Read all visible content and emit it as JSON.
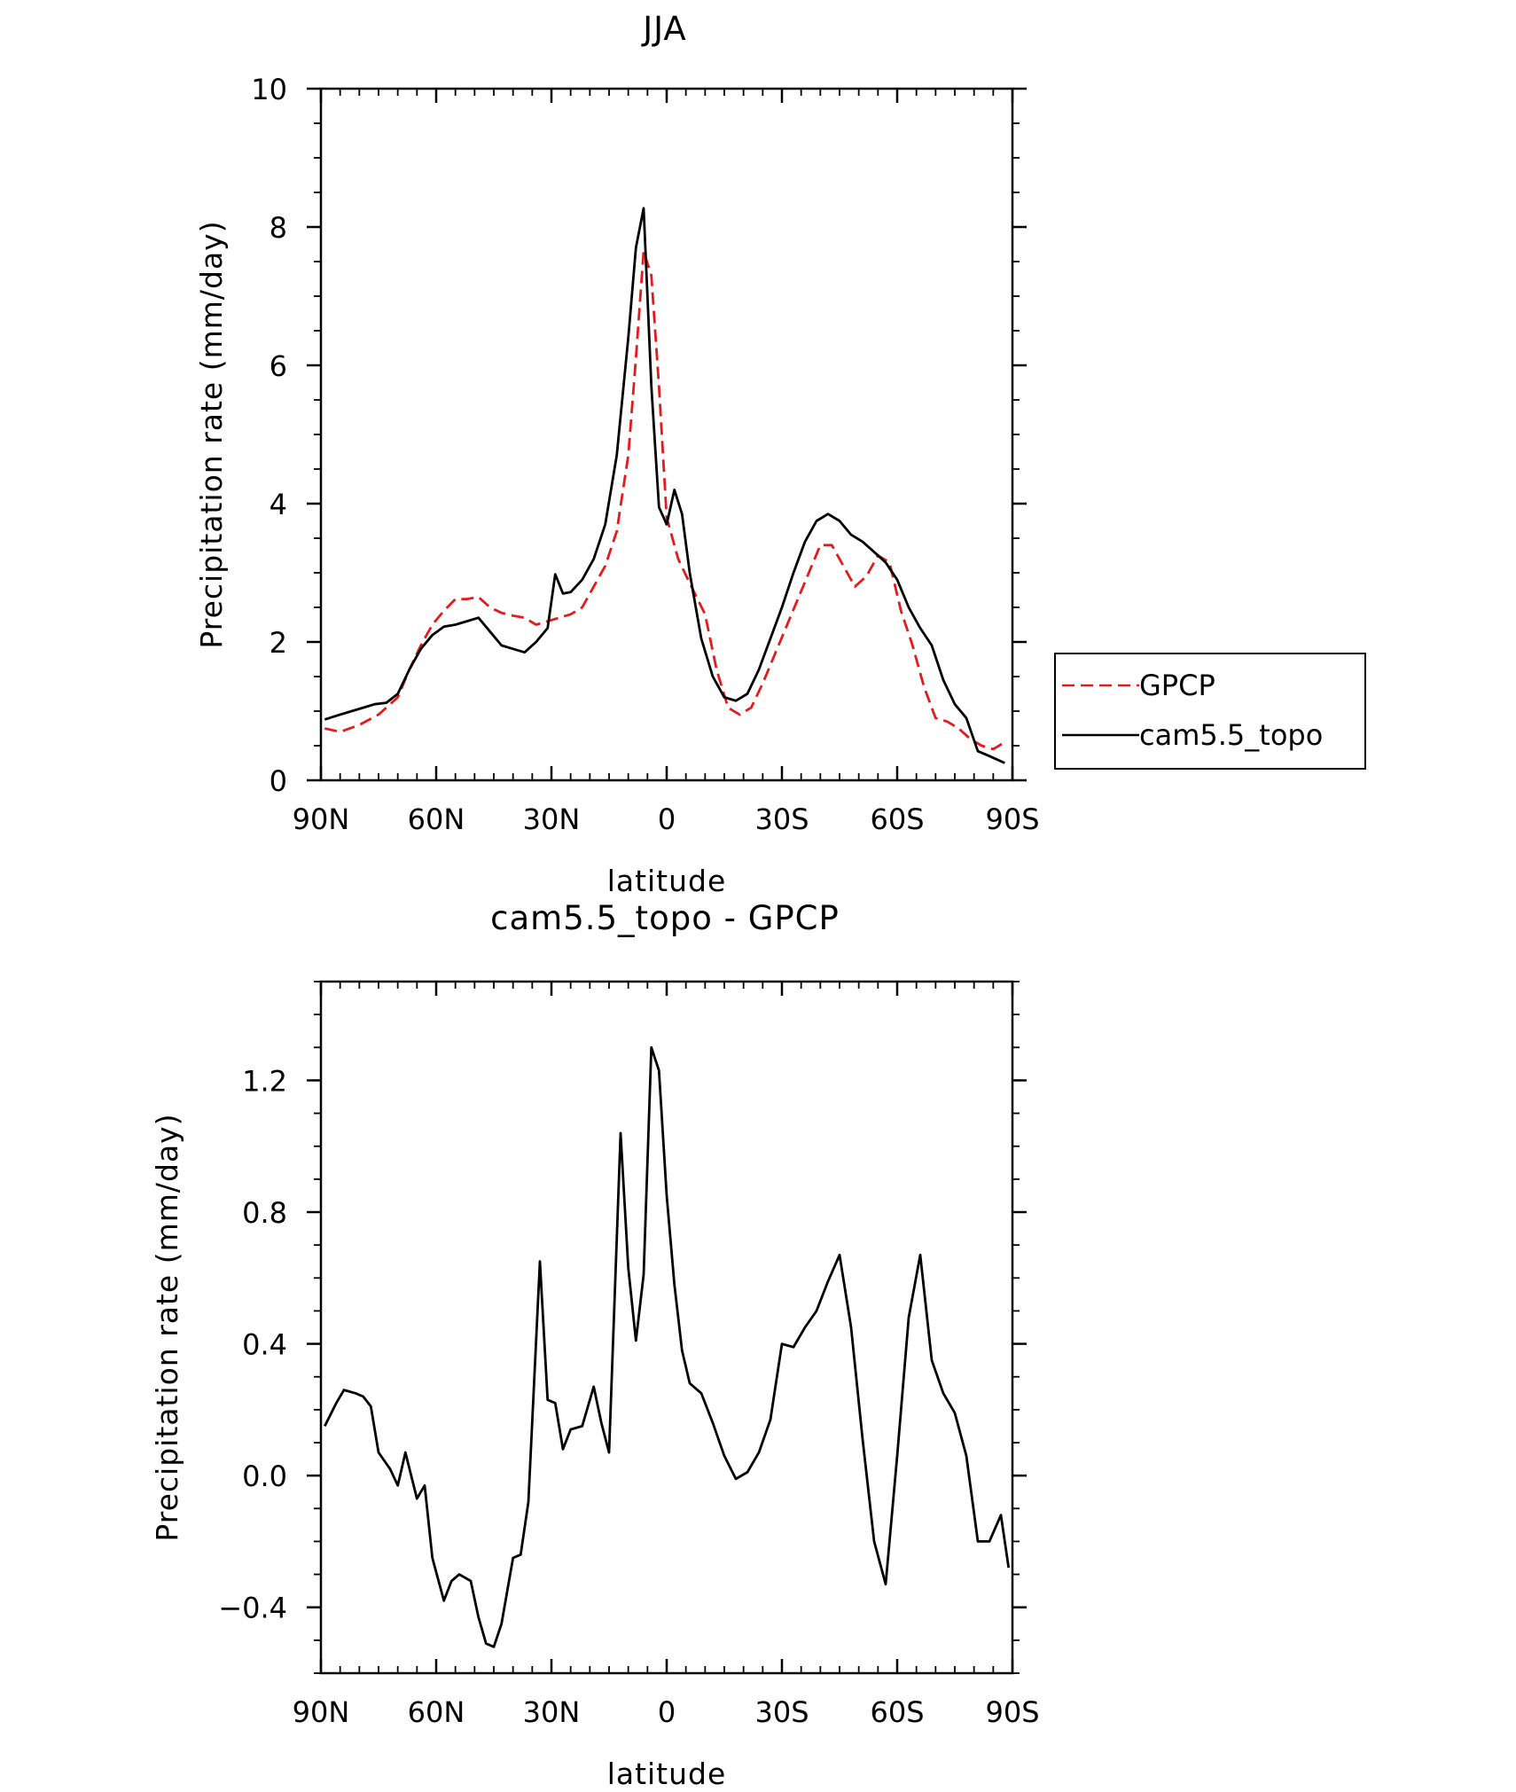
{
  "chart_data": [
    {
      "type": "line",
      "title": "JJA",
      "xlabel": "latitude",
      "ylabel": "Precipitation rate (mm/day)",
      "xlim": [
        90,
        -90
      ],
      "ylim": [
        0,
        10
      ],
      "x_tick_values": [
        90,
        60,
        30,
        0,
        -30,
        -60,
        -90
      ],
      "x_tick_labels": [
        "90N",
        "60N",
        "30N",
        "0",
        "30S",
        "60S",
        "90S"
      ],
      "y_tick_values": [
        0,
        2,
        4,
        6,
        8,
        10
      ],
      "y_tick_labels": [
        "0",
        "2",
        "4",
        "6",
        "8",
        "10"
      ],
      "legend_position": "right",
      "series": [
        {
          "name": "GPCP",
          "color": "#e41a1c",
          "style": "dashed",
          "x": [
            89,
            85,
            80,
            75,
            70,
            67,
            64,
            61,
            58,
            55,
            52,
            49,
            46,
            43,
            40,
            37,
            34,
            31,
            28,
            25,
            22,
            19,
            16,
            13,
            10,
            8,
            6,
            4,
            2,
            0,
            -3,
            -6,
            -10,
            -13,
            -16,
            -19,
            -22,
            -25,
            -28,
            -31,
            -34,
            -37,
            -40,
            -43,
            -46,
            -49,
            -52,
            -55,
            -58,
            -61,
            -64,
            -67,
            -70,
            -73,
            -76,
            -79,
            -82,
            -85,
            -88
          ],
          "values": [
            0.75,
            0.7,
            0.8,
            0.95,
            1.2,
            1.6,
            1.95,
            2.25,
            2.45,
            2.62,
            2.62,
            2.65,
            2.5,
            2.42,
            2.38,
            2.35,
            2.25,
            2.3,
            2.35,
            2.4,
            2.5,
            2.8,
            3.1,
            3.6,
            4.7,
            6.1,
            7.65,
            7.3,
            5.7,
            3.8,
            3.2,
            2.85,
            2.4,
            1.6,
            1.05,
            0.95,
            1.05,
            1.4,
            1.8,
            2.2,
            2.6,
            3.0,
            3.4,
            3.4,
            3.1,
            2.8,
            2.95,
            3.25,
            3.15,
            2.45,
            1.95,
            1.35,
            0.9,
            0.85,
            0.75,
            0.6,
            0.5,
            0.45,
            0.55
          ]
        },
        {
          "name": "cam5.5_topo",
          "color": "#000000",
          "style": "solid",
          "x": [
            89,
            85,
            82,
            79,
            76,
            73,
            70,
            67,
            64,
            61,
            58,
            55,
            52,
            49,
            46,
            43,
            40,
            37,
            34,
            31,
            29,
            27,
            25,
            22,
            19,
            16,
            13,
            10,
            8,
            6,
            4,
            2,
            0,
            -2,
            -4,
            -6,
            -9,
            -12,
            -15,
            -18,
            -21,
            -24,
            -27,
            -30,
            -33,
            -36,
            -39,
            -42,
            -45,
            -48,
            -51,
            -54,
            -57,
            -60,
            -63,
            -66,
            -69,
            -72,
            -75,
            -78,
            -81,
            -84,
            -88
          ],
          "values": [
            0.88,
            0.95,
            1.0,
            1.05,
            1.1,
            1.12,
            1.25,
            1.6,
            1.9,
            2.1,
            2.22,
            2.25,
            2.3,
            2.35,
            2.15,
            1.95,
            1.9,
            1.85,
            2.0,
            2.2,
            2.98,
            2.7,
            2.72,
            2.9,
            3.2,
            3.7,
            4.7,
            6.4,
            7.7,
            8.27,
            5.7,
            3.95,
            3.7,
            4.2,
            3.85,
            3.0,
            2.05,
            1.5,
            1.2,
            1.15,
            1.25,
            1.6,
            2.05,
            2.5,
            3.0,
            3.45,
            3.75,
            3.85,
            3.75,
            3.55,
            3.45,
            3.3,
            3.15,
            2.9,
            2.5,
            2.2,
            1.95,
            1.45,
            1.1,
            0.9,
            0.42,
            0.35,
            0.25
          ]
        }
      ]
    },
    {
      "type": "line",
      "title": "cam5.5_topo - GPCP",
      "xlabel": "latitude",
      "ylabel": "Precipitation rate (mm/day)",
      "xlim": [
        90,
        -90
      ],
      "ylim": [
        -0.6,
        1.5
      ],
      "x_tick_values": [
        90,
        60,
        30,
        0,
        -30,
        -60,
        -90
      ],
      "x_tick_labels": [
        "90N",
        "60N",
        "30N",
        "0",
        "30S",
        "60S",
        "90S"
      ],
      "y_tick_values": [
        -0.4,
        0.0,
        0.4,
        0.8,
        1.2
      ],
      "y_tick_labels": [
        "−0.4",
        "0.0",
        "0.4",
        "0.8",
        "1.2"
      ],
      "series": [
        {
          "color": "#000000",
          "style": "solid",
          "x": [
            89,
            86,
            84,
            81,
            79,
            77,
            75,
            72,
            70,
            68,
            65,
            63,
            61,
            58,
            56,
            54,
            51,
            49,
            47,
            45,
            43,
            40,
            38,
            36,
            33,
            31,
            29,
            27,
            25,
            22,
            19,
            17,
            15,
            12,
            10,
            8,
            6,
            4,
            2,
            0,
            -2,
            -4,
            -6,
            -9,
            -12,
            -15,
            -18,
            -21,
            -24,
            -27,
            -30,
            -33,
            -36,
            -39,
            -42,
            -45,
            -48,
            -51,
            -54,
            -57,
            -60,
            -63,
            -66,
            -69,
            -72,
            -75,
            -78,
            -81,
            -84,
            -87,
            -89
          ],
          "values": [
            0.15,
            0.22,
            0.26,
            0.25,
            0.24,
            0.21,
            0.07,
            0.02,
            -0.03,
            0.07,
            -0.07,
            -0.03,
            -0.25,
            -0.38,
            -0.32,
            -0.3,
            -0.32,
            -0.43,
            -0.51,
            -0.52,
            -0.45,
            -0.25,
            -0.24,
            -0.08,
            0.65,
            0.23,
            0.22,
            0.08,
            0.14,
            0.15,
            0.27,
            0.16,
            0.07,
            1.04,
            0.63,
            0.41,
            0.61,
            1.3,
            1.23,
            0.85,
            0.58,
            0.38,
            0.28,
            0.25,
            0.16,
            0.06,
            -0.01,
            0.01,
            0.07,
            0.17,
            0.4,
            0.39,
            0.45,
            0.5,
            0.59,
            0.67,
            0.45,
            0.11,
            -0.2,
            -0.33,
            0.06,
            0.48,
            0.67,
            0.35,
            0.25,
            0.19,
            0.06,
            -0.2,
            -0.2,
            -0.12,
            -0.28
          ]
        }
      ]
    }
  ]
}
